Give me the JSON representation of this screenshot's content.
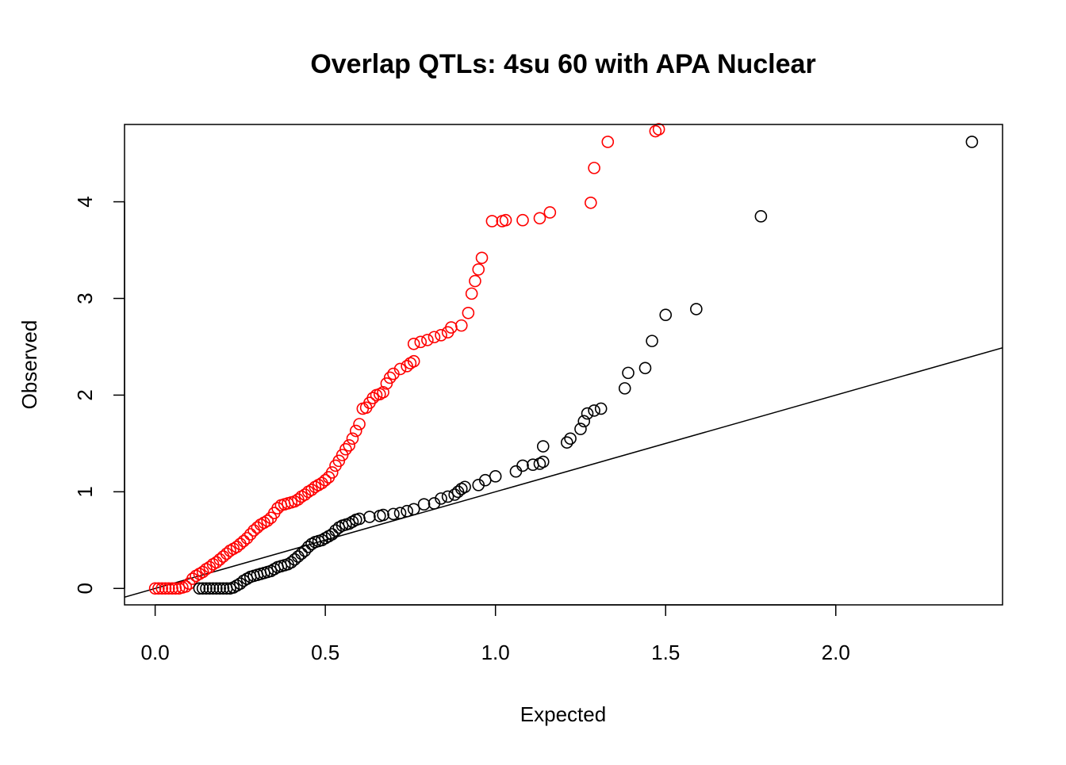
{
  "chart_data": {
    "type": "scatter",
    "title": "Overlap QTLs: 4su 60 with APA Nuclear",
    "xlabel": "Expected",
    "ylabel": "Observed",
    "xlim": [
      -0.09,
      2.49
    ],
    "ylim": [
      -0.17,
      4.8
    ],
    "xticks": [
      "0.0",
      "0.5",
      "1.0",
      "1.5",
      "2.0"
    ],
    "xtick_values": [
      0,
      0.5,
      1,
      1.5,
      2
    ],
    "yticks": [
      "0",
      "1",
      "2",
      "3",
      "4"
    ],
    "ytick_values": [
      0,
      1,
      2,
      3,
      4
    ],
    "grid": false,
    "reference_line": {
      "type": "identity",
      "slope": 1,
      "intercept": 0,
      "color": "#000000"
    },
    "series": [
      {
        "color": "#ff0000",
        "marker": "open-circle",
        "points": [
          [
            0.0,
            0.0
          ],
          [
            0.01,
            0.0
          ],
          [
            0.02,
            0.0
          ],
          [
            0.03,
            0.0
          ],
          [
            0.04,
            0.0
          ],
          [
            0.05,
            0.0
          ],
          [
            0.06,
            0.0
          ],
          [
            0.07,
            0.0
          ],
          [
            0.08,
            0.01
          ],
          [
            0.09,
            0.02
          ],
          [
            0.1,
            0.05
          ],
          [
            0.11,
            0.1
          ],
          [
            0.12,
            0.13
          ],
          [
            0.13,
            0.15
          ],
          [
            0.14,
            0.17
          ],
          [
            0.15,
            0.2
          ],
          [
            0.16,
            0.22
          ],
          [
            0.17,
            0.25
          ],
          [
            0.18,
            0.27
          ],
          [
            0.19,
            0.3
          ],
          [
            0.2,
            0.33
          ],
          [
            0.21,
            0.36
          ],
          [
            0.22,
            0.39
          ],
          [
            0.23,
            0.41
          ],
          [
            0.24,
            0.43
          ],
          [
            0.25,
            0.46
          ],
          [
            0.26,
            0.49
          ],
          [
            0.27,
            0.52
          ],
          [
            0.28,
            0.56
          ],
          [
            0.29,
            0.6
          ],
          [
            0.3,
            0.63
          ],
          [
            0.31,
            0.66
          ],
          [
            0.32,
            0.68
          ],
          [
            0.33,
            0.7
          ],
          [
            0.34,
            0.73
          ],
          [
            0.35,
            0.78
          ],
          [
            0.36,
            0.83
          ],
          [
            0.37,
            0.86
          ],
          [
            0.38,
            0.87
          ],
          [
            0.39,
            0.88
          ],
          [
            0.4,
            0.89
          ],
          [
            0.41,
            0.9
          ],
          [
            0.42,
            0.92
          ],
          [
            0.43,
            0.95
          ],
          [
            0.44,
            0.97
          ],
          [
            0.45,
            1.0
          ],
          [
            0.46,
            1.02
          ],
          [
            0.47,
            1.05
          ],
          [
            0.48,
            1.07
          ],
          [
            0.49,
            1.09
          ],
          [
            0.5,
            1.12
          ],
          [
            0.51,
            1.15
          ],
          [
            0.52,
            1.2
          ],
          [
            0.53,
            1.27
          ],
          [
            0.54,
            1.32
          ],
          [
            0.55,
            1.38
          ],
          [
            0.56,
            1.44
          ],
          [
            0.57,
            1.48
          ],
          [
            0.58,
            1.55
          ],
          [
            0.59,
            1.63
          ],
          [
            0.6,
            1.7
          ],
          [
            0.61,
            1.86
          ],
          [
            0.62,
            1.87
          ],
          [
            0.63,
            1.92
          ],
          [
            0.64,
            1.97
          ],
          [
            0.65,
            2.0
          ],
          [
            0.66,
            2.01
          ],
          [
            0.67,
            2.03
          ],
          [
            0.68,
            2.12
          ],
          [
            0.69,
            2.18
          ],
          [
            0.7,
            2.22
          ],
          [
            0.72,
            2.27
          ],
          [
            0.74,
            2.3
          ],
          [
            0.75,
            2.33
          ],
          [
            0.76,
            2.35
          ],
          [
            0.76,
            2.53
          ],
          [
            0.78,
            2.55
          ],
          [
            0.8,
            2.57
          ],
          [
            0.82,
            2.6
          ],
          [
            0.84,
            2.62
          ],
          [
            0.86,
            2.65
          ],
          [
            0.87,
            2.7
          ],
          [
            0.9,
            2.72
          ],
          [
            0.92,
            2.85
          ],
          [
            0.93,
            3.05
          ],
          [
            0.94,
            3.18
          ],
          [
            0.95,
            3.3
          ],
          [
            0.96,
            3.42
          ],
          [
            0.99,
            3.8
          ],
          [
            1.02,
            3.8
          ],
          [
            1.03,
            3.81
          ],
          [
            1.08,
            3.81
          ],
          [
            1.13,
            3.83
          ],
          [
            1.16,
            3.89
          ],
          [
            1.28,
            3.99
          ],
          [
            1.29,
            4.35
          ],
          [
            1.33,
            4.62
          ],
          [
            1.47,
            4.73
          ],
          [
            1.48,
            4.75
          ]
        ]
      },
      {
        "color": "#000000",
        "marker": "open-circle",
        "points": [
          [
            0.13,
            0.0
          ],
          [
            0.14,
            0.0
          ],
          [
            0.15,
            0.0
          ],
          [
            0.16,
            0.0
          ],
          [
            0.17,
            0.0
          ],
          [
            0.18,
            0.0
          ],
          [
            0.19,
            0.0
          ],
          [
            0.2,
            0.0
          ],
          [
            0.21,
            0.0
          ],
          [
            0.22,
            0.0
          ],
          [
            0.23,
            0.01
          ],
          [
            0.24,
            0.03
          ],
          [
            0.25,
            0.05
          ],
          [
            0.26,
            0.08
          ],
          [
            0.27,
            0.1
          ],
          [
            0.28,
            0.12
          ],
          [
            0.29,
            0.13
          ],
          [
            0.3,
            0.14
          ],
          [
            0.31,
            0.15
          ],
          [
            0.32,
            0.16
          ],
          [
            0.33,
            0.17
          ],
          [
            0.34,
            0.18
          ],
          [
            0.35,
            0.2
          ],
          [
            0.36,
            0.22
          ],
          [
            0.37,
            0.23
          ],
          [
            0.38,
            0.24
          ],
          [
            0.39,
            0.25
          ],
          [
            0.4,
            0.27
          ],
          [
            0.41,
            0.3
          ],
          [
            0.42,
            0.33
          ],
          [
            0.43,
            0.36
          ],
          [
            0.44,
            0.39
          ],
          [
            0.45,
            0.43
          ],
          [
            0.46,
            0.46
          ],
          [
            0.47,
            0.48
          ],
          [
            0.48,
            0.49
          ],
          [
            0.49,
            0.5
          ],
          [
            0.5,
            0.52
          ],
          [
            0.51,
            0.54
          ],
          [
            0.52,
            0.56
          ],
          [
            0.53,
            0.6
          ],
          [
            0.54,
            0.63
          ],
          [
            0.55,
            0.65
          ],
          [
            0.56,
            0.66
          ],
          [
            0.57,
            0.67
          ],
          [
            0.58,
            0.69
          ],
          [
            0.59,
            0.71
          ],
          [
            0.6,
            0.72
          ],
          [
            0.63,
            0.74
          ],
          [
            0.66,
            0.75
          ],
          [
            0.67,
            0.76
          ],
          [
            0.7,
            0.77
          ],
          [
            0.72,
            0.78
          ],
          [
            0.74,
            0.8
          ],
          [
            0.76,
            0.82
          ],
          [
            0.79,
            0.87
          ],
          [
            0.82,
            0.88
          ],
          [
            0.84,
            0.93
          ],
          [
            0.86,
            0.95
          ],
          [
            0.88,
            0.97
          ],
          [
            0.89,
            1.0
          ],
          [
            0.9,
            1.03
          ],
          [
            0.91,
            1.05
          ],
          [
            0.95,
            1.07
          ],
          [
            0.97,
            1.12
          ],
          [
            1.0,
            1.16
          ],
          [
            1.06,
            1.21
          ],
          [
            1.08,
            1.27
          ],
          [
            1.11,
            1.28
          ],
          [
            1.13,
            1.29
          ],
          [
            1.14,
            1.31
          ],
          [
            1.14,
            1.47
          ],
          [
            1.21,
            1.51
          ],
          [
            1.22,
            1.55
          ],
          [
            1.25,
            1.65
          ],
          [
            1.26,
            1.73
          ],
          [
            1.27,
            1.81
          ],
          [
            1.29,
            1.84
          ],
          [
            1.31,
            1.86
          ],
          [
            1.38,
            2.07
          ],
          [
            1.39,
            2.23
          ],
          [
            1.44,
            2.28
          ],
          [
            1.46,
            2.56
          ],
          [
            1.5,
            2.83
          ],
          [
            1.59,
            2.89
          ],
          [
            1.78,
            3.85
          ],
          [
            2.4,
            4.62
          ]
        ]
      }
    ]
  }
}
